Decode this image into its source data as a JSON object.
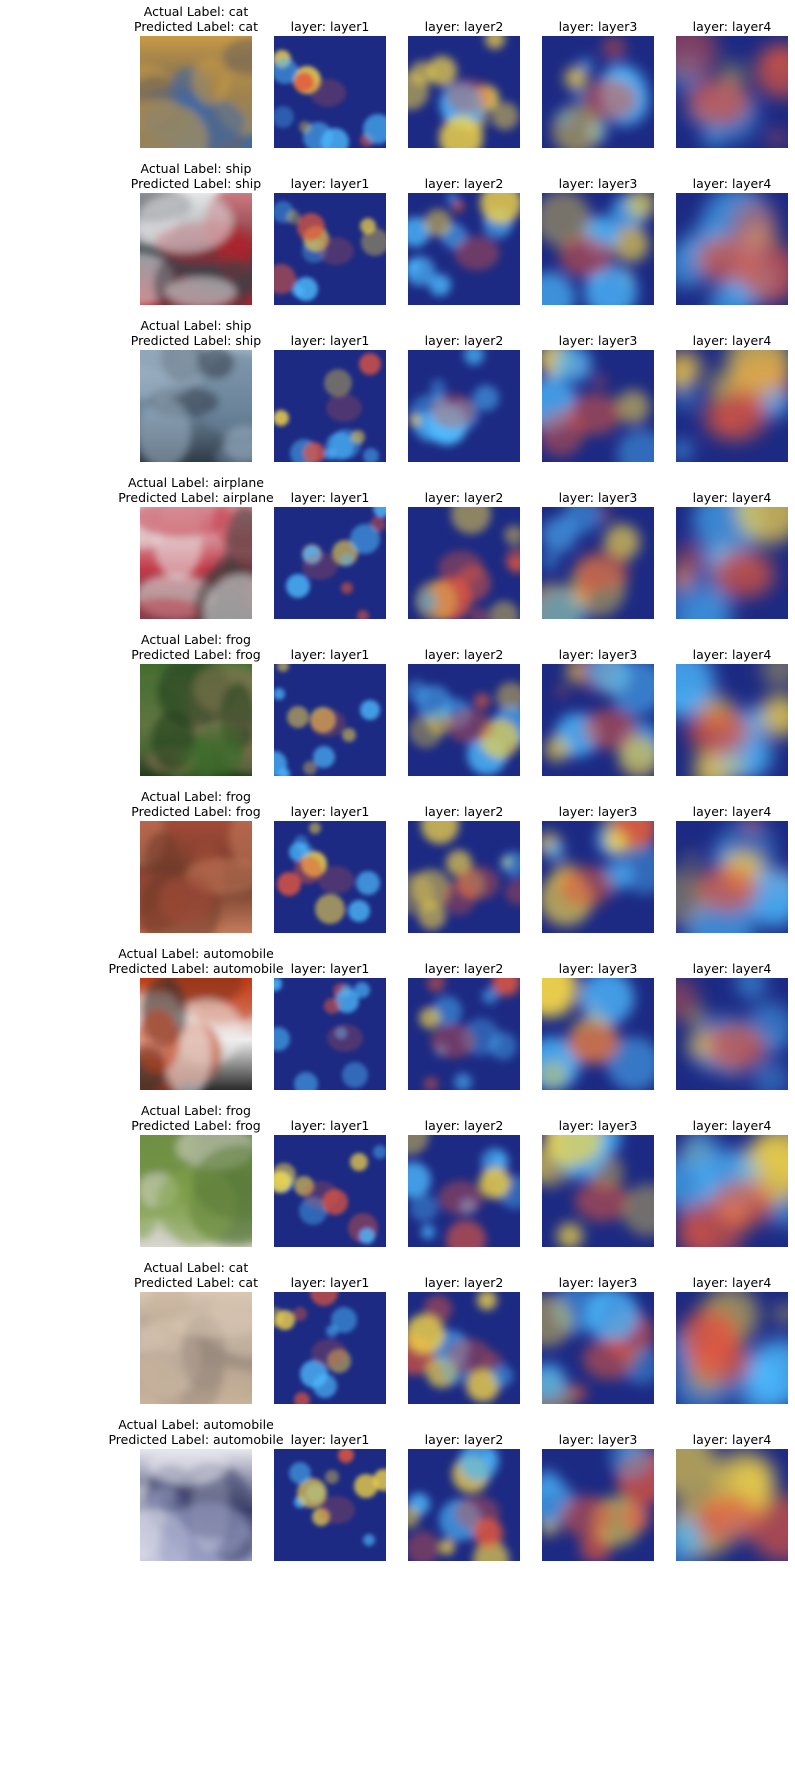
{
  "rows": [
    {
      "actual_label": "Actual Label: cat",
      "predicted_label": "Predicted Label: cat",
      "layers": [
        "layer: layer1",
        "layer: layer2",
        "layer: layer3",
        "layer: layer4"
      ],
      "input_colors": [
        "#c89a44",
        "#6b6258",
        "#3f6aa8"
      ]
    },
    {
      "actual_label": "Actual Label: ship",
      "predicted_label": "Predicted Label: ship",
      "layers": [
        "layer: layer1",
        "layer: layer2",
        "layer: layer3",
        "layer: layer4"
      ],
      "input_colors": [
        "#e6e8ea",
        "#3a3f47",
        "#b3202a"
      ]
    },
    {
      "actual_label": "Actual Label: ship",
      "predicted_label": "Predicted Label: ship",
      "layers": [
        "layer: layer1",
        "layer: layer2",
        "layer: layer3",
        "layer: layer4"
      ],
      "input_colors": [
        "#9fb2c4",
        "#6a8399",
        "#2f3b47"
      ]
    },
    {
      "actual_label": "Actual Label: airplane",
      "predicted_label": "Predicted Label: airplane",
      "layers": [
        "layer: layer1",
        "layer: layer2",
        "layer: layer3",
        "layer: layer4"
      ],
      "input_colors": [
        "#e9e9ea",
        "#c43a4a",
        "#3b3b3c"
      ]
    },
    {
      "actual_label": "Actual Label: frog",
      "predicted_label": "Predicted Label: frog",
      "layers": [
        "layer: layer1",
        "layer: layer2",
        "layer: layer3",
        "layer: layer4"
      ],
      "input_colors": [
        "#3f6d2d",
        "#8a7a56",
        "#1f3d1b"
      ]
    },
    {
      "actual_label": "Actual Label: frog",
      "predicted_label": "Predicted Label: frog",
      "layers": [
        "layer: layer1",
        "layer: layer2",
        "layer: layer3",
        "layer: layer4"
      ],
      "input_colors": [
        "#a24b37",
        "#6d3a2a",
        "#c47b5b"
      ]
    },
    {
      "actual_label": "Actual Label: automobile",
      "predicted_label": "Predicted Label: automobile",
      "layers": [
        "layer: layer1",
        "layer: layer2",
        "layer: layer3",
        "layer: layer4"
      ],
      "input_colors": [
        "#c33a12",
        "#eeeeee",
        "#2b2b2b"
      ]
    },
    {
      "actual_label": "Actual Label: frog",
      "predicted_label": "Predicted Label: frog",
      "layers": [
        "layer: layer1",
        "layer: layer2",
        "layer: layer3",
        "layer: layer4"
      ],
      "input_colors": [
        "#5a7a3a",
        "#7fa04a",
        "#d8d6d0"
      ]
    },
    {
      "actual_label": "Actual Label: cat",
      "predicted_label": "Predicted Label: cat",
      "layers": [
        "layer: layer1",
        "layer: layer2",
        "layer: layer3",
        "layer: layer4"
      ],
      "input_colors": [
        "#d9c6b2",
        "#9a8a7d",
        "#c9b39a"
      ]
    },
    {
      "actual_label": "Actual Label: automobile",
      "predicted_label": "Predicted Label: automobile",
      "layers": [
        "layer: layer1",
        "layer: layer2",
        "layer: layer3",
        "layer: layer4"
      ],
      "input_colors": [
        "#e7e7ef",
        "#3a3f6a",
        "#9aa0c4"
      ]
    }
  ],
  "heatmap_colors": {
    "low": "#0b1a7a",
    "mid": "#3fb6ff",
    "high": "#e34a2f",
    "warm": "#f1d13b"
  }
}
